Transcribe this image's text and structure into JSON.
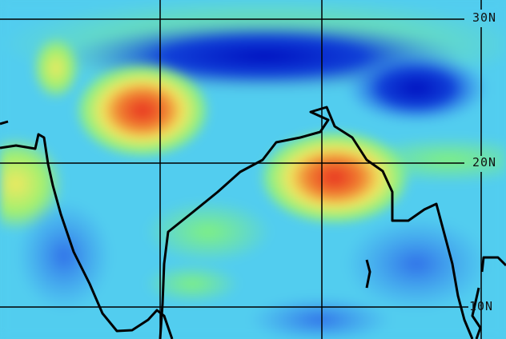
{
  "map": {
    "latitude_labels": [
      "30N",
      "20N",
      "10N"
    ],
    "colors": {
      "low": "#0010c8",
      "mid_low": "#3a8ef0",
      "mid": "#52cdef",
      "mid_high": "#7ef08a",
      "high": "#f0f060",
      "peak": "#e83020",
      "coastline": "#000000",
      "grid": "#000000"
    }
  }
}
